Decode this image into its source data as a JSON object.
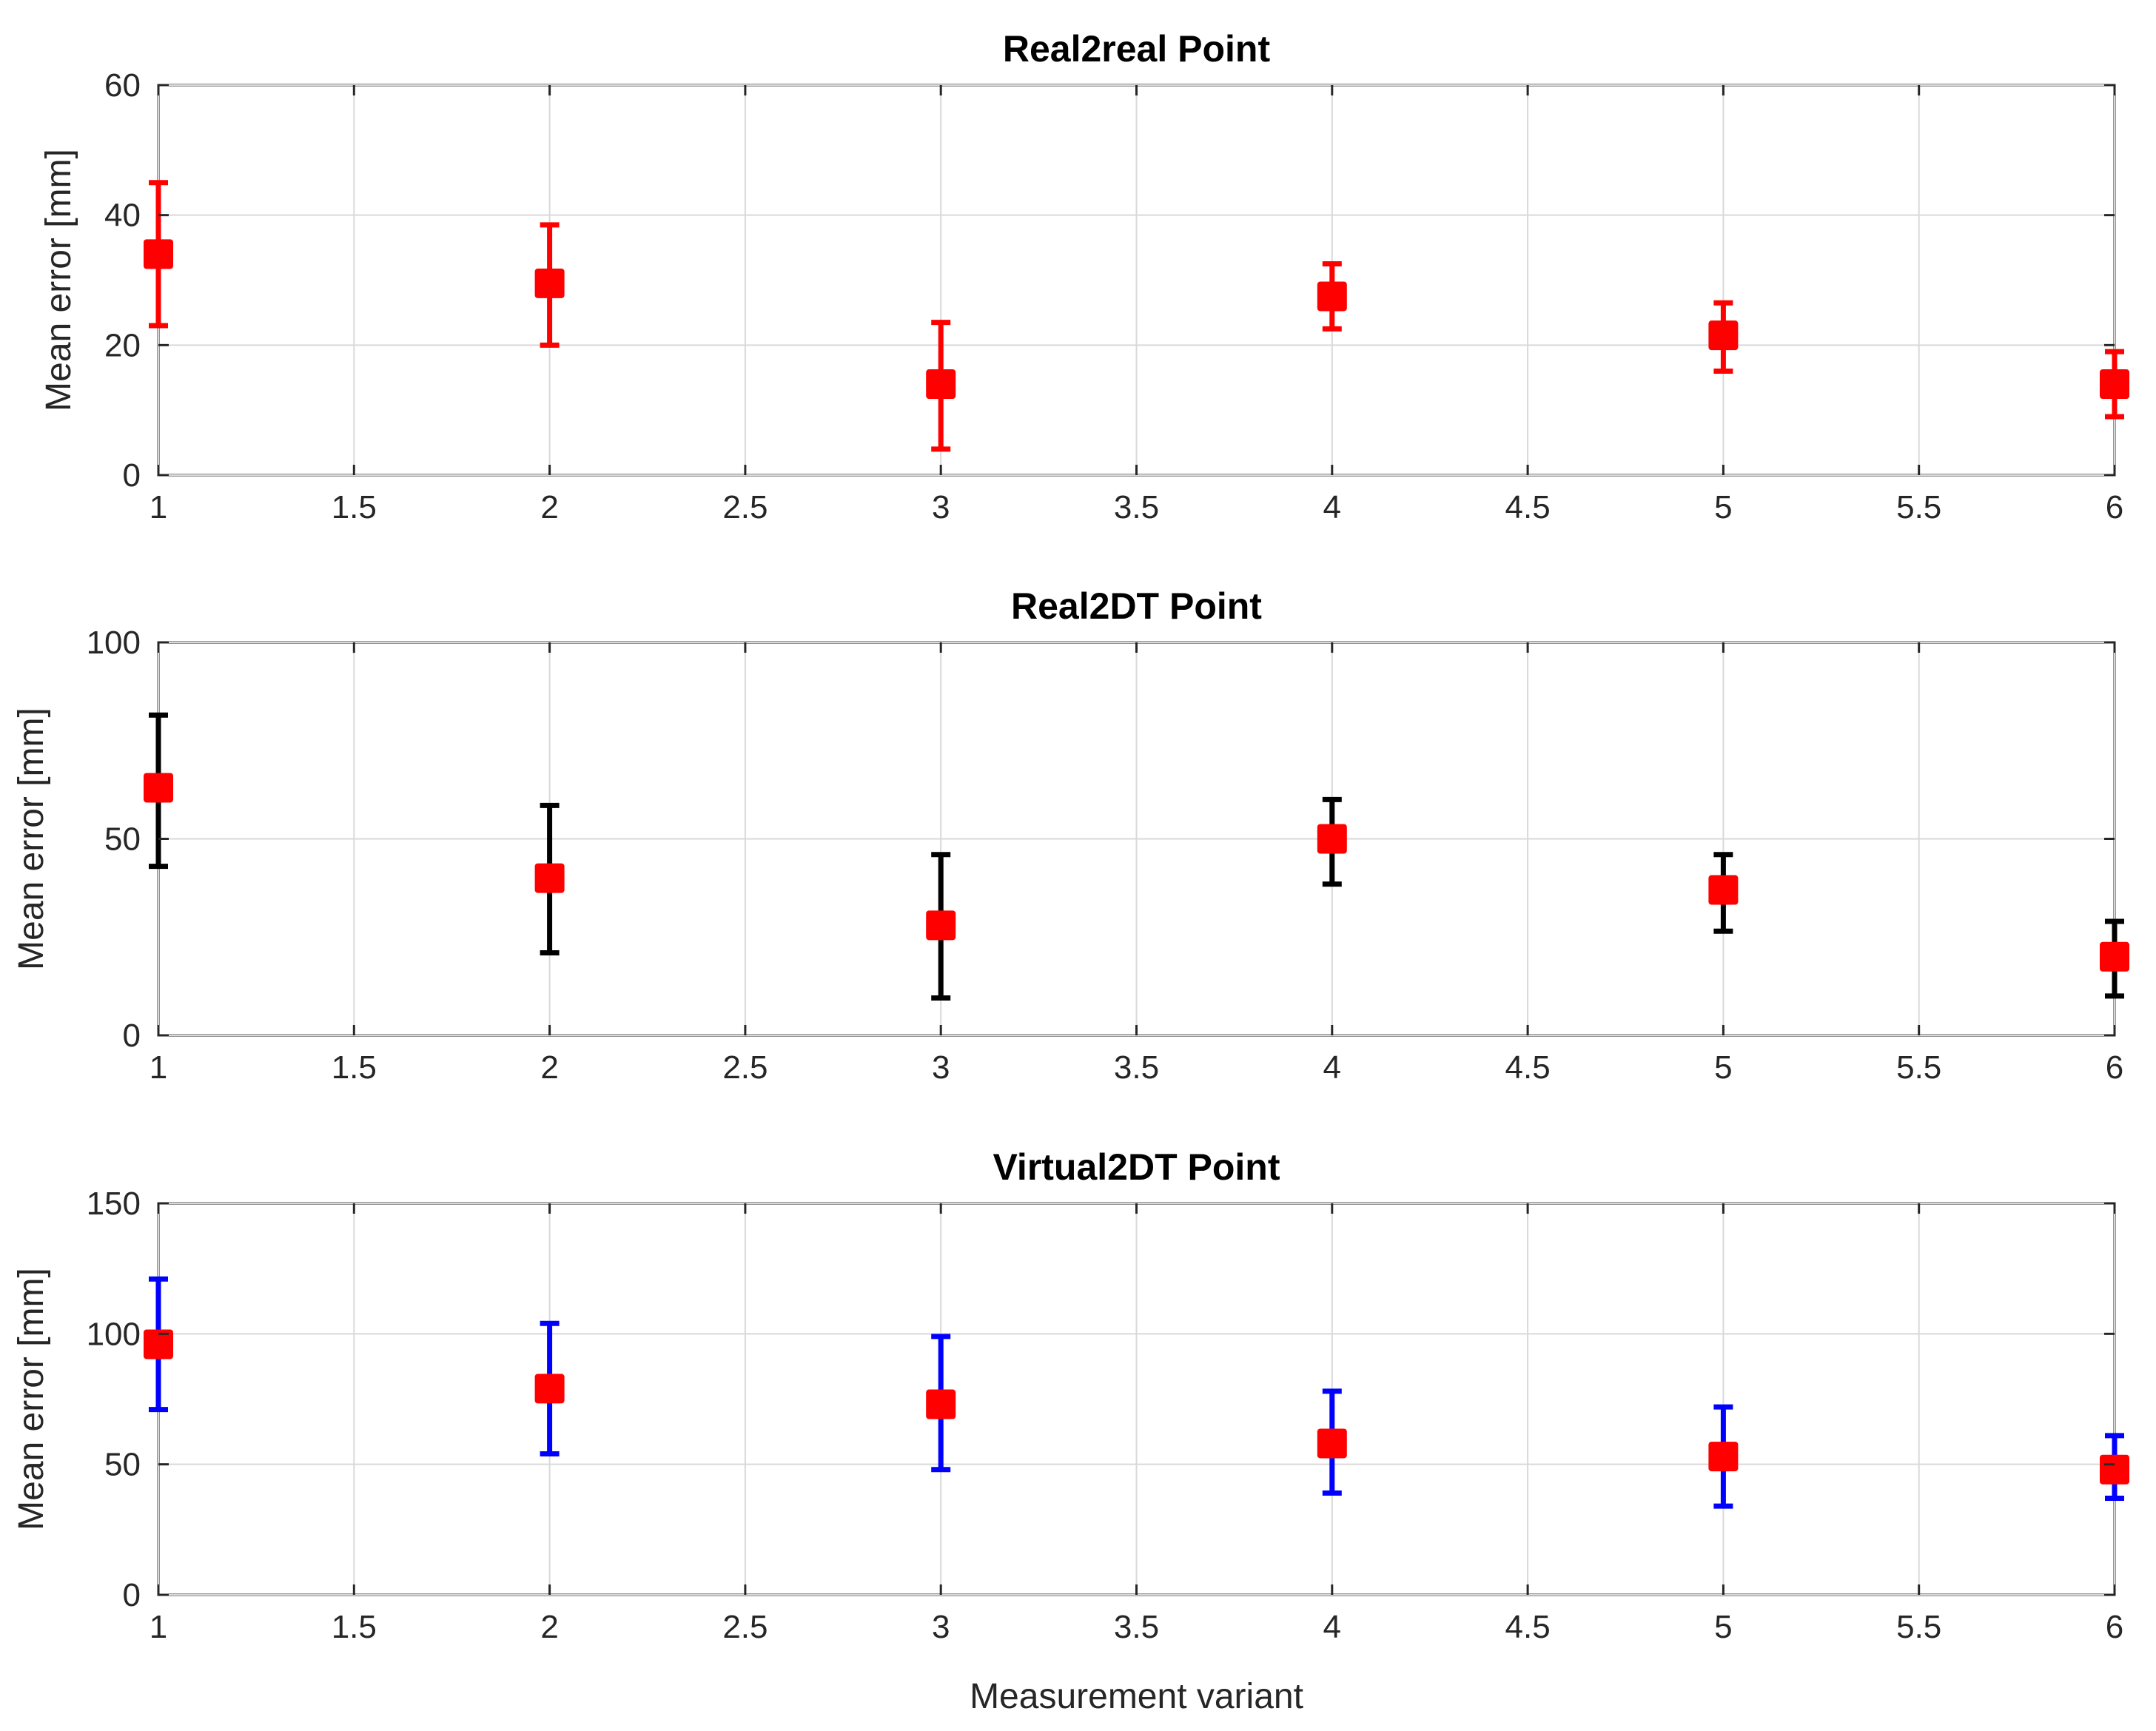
{
  "chart_data": [
    {
      "type": "scatter",
      "title": "Real2real Point",
      "xlabel": "",
      "ylabel": "Mean error [mm]",
      "xlim": [
        1,
        6
      ],
      "ylim": [
        0,
        60
      ],
      "xticks": [
        "1",
        "1.5",
        "2",
        "2.5",
        "3",
        "3.5",
        "4",
        "4.5",
        "5",
        "5.5",
        "6"
      ],
      "yticks": [
        "0",
        "20",
        "40",
        "60"
      ],
      "grid": true,
      "marker_color": "#ff0000",
      "errorbar_color": "#ff0000",
      "x": [
        1,
        2,
        3,
        4,
        5,
        6
      ],
      "y": [
        34,
        29.5,
        14,
        27.5,
        21.5,
        14
      ],
      "y_lower": [
        23,
        20,
        4,
        22.5,
        16,
        9
      ],
      "y_upper": [
        45,
        38.5,
        23.5,
        32.5,
        26.5,
        19
      ]
    },
    {
      "type": "scatter",
      "title": "Real2DT Point",
      "xlabel": "",
      "ylabel": "Mean error [mm]",
      "xlim": [
        1,
        6
      ],
      "ylim": [
        0,
        100
      ],
      "xticks": [
        "1",
        "1.5",
        "2",
        "2.5",
        "3",
        "3.5",
        "4",
        "4.5",
        "5",
        "5.5",
        "6"
      ],
      "yticks": [
        "0",
        "50",
        "100"
      ],
      "grid": true,
      "marker_color": "#ff0000",
      "errorbar_color": "#000000",
      "x": [
        1,
        2,
        3,
        4,
        5,
        6
      ],
      "y": [
        63,
        40,
        28,
        50,
        37,
        20
      ],
      "y_lower": [
        43,
        21,
        9.5,
        38.5,
        26.5,
        10
      ],
      "y_upper": [
        81.5,
        58.5,
        46,
        60,
        46,
        29
      ]
    },
    {
      "type": "scatter",
      "title": "Virtual2DT Point",
      "xlabel": "Measurement variant",
      "ylabel": "Mean error [mm]",
      "xlim": [
        1,
        6
      ],
      "ylim": [
        0,
        150
      ],
      "xticks": [
        "1",
        "1.5",
        "2",
        "2.5",
        "3",
        "3.5",
        "4",
        "4.5",
        "5",
        "5.5",
        "6"
      ],
      "yticks": [
        "0",
        "50",
        "100",
        "150"
      ],
      "grid": true,
      "marker_color": "#ff0000",
      "errorbar_color": "#0000ff",
      "x": [
        1,
        2,
        3,
        4,
        5,
        6
      ],
      "y": [
        96,
        79,
        73,
        58,
        53,
        48
      ],
      "y_lower": [
        71,
        54,
        48,
        39,
        34,
        37
      ],
      "y_upper": [
        121,
        104,
        99,
        78,
        72,
        61
      ]
    }
  ]
}
